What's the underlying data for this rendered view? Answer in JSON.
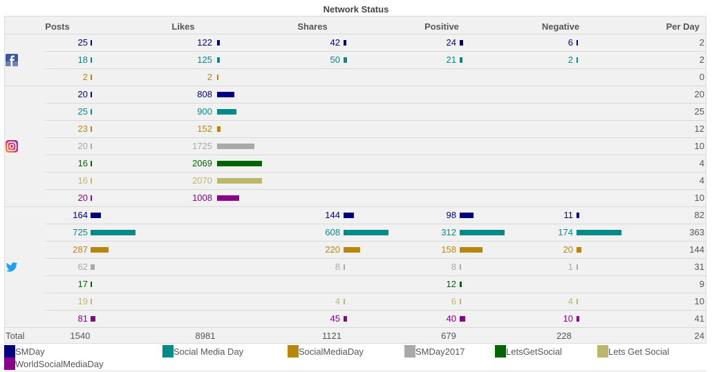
{
  "title": "Network Status",
  "headers": [
    "Posts",
    "Likes",
    "Shares",
    "Positive",
    "Negative",
    "Per Day"
  ],
  "total_label": "Total",
  "totals": [
    "1540",
    "8981",
    "1121",
    "679",
    "228",
    "24"
  ],
  "networks": [
    {
      "name": "facebook",
      "icon": "facebook-icon"
    },
    {
      "name": "instagram",
      "icon": "instagram-icon"
    },
    {
      "name": "twitter",
      "icon": "twitter-icon"
    }
  ],
  "series_colors": {
    "SMDay": "#000080",
    "Social Media Day": "#008b8b",
    "SocialMediaDay": "#b8860b",
    "SMDay2017": "#a9a9a9",
    "LetsGetSocial": "#006400",
    "Lets Get Social": "#bdb76b",
    "WorldSocialMediaDay": "#8b008b"
  },
  "legend": [
    "SMDay",
    "Social Media Day",
    "SocialMediaDay",
    "SMDay2017",
    "LetsGetSocial",
    "Lets Get Social",
    "WorldSocialMediaDay"
  ],
  "chart_data": {
    "type": "table",
    "title": "Network Status",
    "columns": [
      "Posts",
      "Likes",
      "Shares",
      "Positive",
      "Negative",
      "Per Day"
    ],
    "rows": [
      {
        "network": "facebook",
        "series": "SMDay",
        "values": [
          25,
          122,
          42,
          24,
          6,
          2
        ]
      },
      {
        "network": "facebook",
        "series": "Social Media Day",
        "values": [
          18,
          125,
          50,
          21,
          2,
          2
        ]
      },
      {
        "network": "facebook",
        "series": "SocialMediaDay",
        "values": [
          2,
          2,
          null,
          null,
          null,
          0
        ]
      },
      {
        "network": "instagram",
        "series": "SMDay",
        "values": [
          20,
          808,
          null,
          null,
          null,
          20
        ]
      },
      {
        "network": "instagram",
        "series": "Social Media Day",
        "values": [
          25,
          900,
          null,
          null,
          null,
          25
        ]
      },
      {
        "network": "instagram",
        "series": "SocialMediaDay",
        "values": [
          23,
          152,
          null,
          null,
          null,
          12
        ]
      },
      {
        "network": "instagram",
        "series": "SMDay2017",
        "values": [
          20,
          1725,
          null,
          null,
          null,
          10
        ]
      },
      {
        "network": "instagram",
        "series": "LetsGetSocial",
        "values": [
          16,
          2069,
          null,
          null,
          null,
          4
        ]
      },
      {
        "network": "instagram",
        "series": "Lets Get Social",
        "values": [
          16,
          2070,
          null,
          null,
          null,
          4
        ]
      },
      {
        "network": "instagram",
        "series": "WorldSocialMediaDay",
        "values": [
          20,
          1008,
          null,
          null,
          null,
          10
        ]
      },
      {
        "network": "twitter",
        "series": "SMDay",
        "values": [
          164,
          null,
          144,
          98,
          11,
          82
        ]
      },
      {
        "network": "twitter",
        "series": "Social Media Day",
        "values": [
          725,
          null,
          608,
          312,
          174,
          363
        ]
      },
      {
        "network": "twitter",
        "series": "SocialMediaDay",
        "values": [
          287,
          null,
          220,
          158,
          20,
          144
        ]
      },
      {
        "network": "twitter",
        "series": "SMDay2017",
        "values": [
          62,
          null,
          8,
          8,
          1,
          31
        ]
      },
      {
        "network": "twitter",
        "series": "LetsGetSocial",
        "values": [
          17,
          null,
          null,
          12,
          null,
          9
        ]
      },
      {
        "network": "twitter",
        "series": "Lets Get Social",
        "values": [
          19,
          null,
          4,
          6,
          4,
          10
        ]
      },
      {
        "network": "twitter",
        "series": "WorldSocialMediaDay",
        "values": [
          81,
          null,
          45,
          40,
          10,
          41
        ]
      }
    ],
    "bar_max": {
      "Posts": 725,
      "Likes": 2070,
      "Shares": 608,
      "Positive": 312,
      "Negative": 174
    }
  }
}
